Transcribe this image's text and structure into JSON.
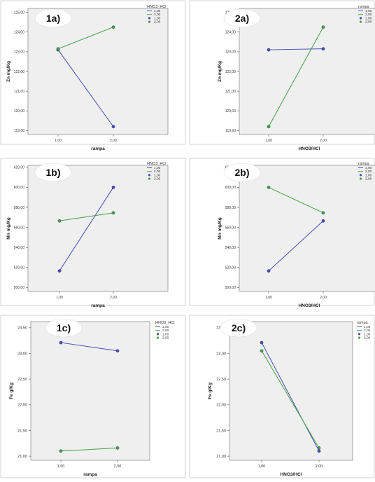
{
  "colors": {
    "blue": "#4a4ab8",
    "green": "#3fa33f",
    "plot_bg": "#efefef",
    "frame": "#909090"
  },
  "chart_data": [
    {
      "type": "line",
      "tag": "1a)",
      "xlabel": "rampa",
      "ylabel": "Zn mg/Kg",
      "x": [
        "1,00",
        "2,00"
      ],
      "ylim": [
        118.8,
        125.2
      ],
      "yticks": [
        119,
        120,
        121,
        122,
        123,
        124,
        125
      ],
      "ytick_labels": [
        "119,00",
        "120,00",
        "121,00",
        "122,00",
        "123,00",
        "124,00",
        "125,00"
      ],
      "legend_title": "HNO3_HCl",
      "legend_labels": [
        "1,00",
        "2,00",
        "1,00",
        "2,00"
      ],
      "series": [
        {
          "name": "1,00",
          "color": "blue",
          "values": [
            123.1,
            119.2
          ]
        },
        {
          "name": "2,00",
          "color": "green",
          "values": [
            123.15,
            124.25
          ]
        }
      ]
    },
    {
      "type": "line",
      "tag": "2a)",
      "xlabel": "HNO3/HCl",
      "ylabel": "Zn mg/Kg",
      "x": [
        "1,00",
        "2,00"
      ],
      "ylim": [
        118.8,
        125.2
      ],
      "yticks": [
        119,
        120,
        121,
        122,
        123,
        124,
        125
      ],
      "ytick_labels": [
        "119,00",
        "120,00",
        "121,00",
        "122,00",
        "123,00",
        "124,00",
        "125,00"
      ],
      "legend_title": "rampa",
      "legend_labels": [
        "1,00",
        "2,00",
        "1,00",
        "2,00"
      ],
      "series": [
        {
          "name": "1,00",
          "color": "blue",
          "values": [
            123.1,
            123.15
          ]
        },
        {
          "name": "2,00",
          "color": "green",
          "values": [
            119.2,
            124.25
          ]
        }
      ]
    },
    {
      "type": "line",
      "tag": "1b)",
      "xlabel": "rampa",
      "ylabel": "Mn mg/Kg",
      "x": [
        "1,00",
        "2,00"
      ],
      "ylim": [
        496,
        622
      ],
      "yticks": [
        500,
        520,
        540,
        560,
        580,
        600,
        620
      ],
      "ytick_labels": [
        "500,00",
        "520,00",
        "540,00",
        "560,00",
        "580,00",
        "600,00",
        "620,00"
      ],
      "legend_title": "HNO3_HCl",
      "legend_labels": [
        "1,00",
        "2,00",
        "1,00",
        "2,00"
      ],
      "series": [
        {
          "name": "1,00",
          "color": "blue",
          "values": [
            516.5,
            600
          ]
        },
        {
          "name": "2,00",
          "color": "green",
          "values": [
            566.5,
            574.5
          ]
        }
      ]
    },
    {
      "type": "line",
      "tag": "2b)",
      "xlabel": "HNO3/HCl",
      "ylabel": "Mn mg/Kg",
      "x": [
        "1,00",
        "2,00"
      ],
      "ylim": [
        496,
        622
      ],
      "yticks": [
        500,
        520,
        540,
        560,
        580,
        600,
        620
      ],
      "ytick_labels": [
        "500,00",
        "520,00",
        "540,00",
        "560,00",
        "580,00",
        "600,00",
        "620,00"
      ],
      "legend_title": "rampa",
      "legend_labels": [
        "1,00",
        "2,00",
        "1,00",
        "2,00"
      ],
      "series": [
        {
          "name": "1,00",
          "color": "blue",
          "values": [
            516.5,
            566.5
          ]
        },
        {
          "name": "2,00",
          "color": "green",
          "values": [
            600,
            574.5
          ]
        }
      ]
    },
    {
      "type": "line",
      "tag": "1c)",
      "xlabel": "rampa",
      "ylabel": "Fe g/Kg",
      "x": [
        "1,00",
        "2,00"
      ],
      "ylim": [
        20.92,
        23.62
      ],
      "yticks": [
        21.0,
        21.5,
        22.0,
        22.5,
        23.0,
        23.5
      ],
      "ytick_labels": [
        "21,00",
        "21,50",
        "22,00",
        "22,50",
        "23,00",
        "23,50"
      ],
      "legend_title": "HNO3_HCl",
      "legend_labels": [
        "1,00",
        "2,00",
        "1,00",
        "2,00"
      ],
      "series": [
        {
          "name": "1,00",
          "color": "blue",
          "values": [
            23.21,
            23.05
          ]
        },
        {
          "name": "2,00",
          "color": "green",
          "values": [
            21.1,
            21.16
          ]
        }
      ]
    },
    {
      "type": "line",
      "tag": "2c)",
      "xlabel": "HNO3/HCl",
      "ylabel": "Fe g/Kg",
      "x": [
        "1,00",
        "2,00"
      ],
      "ylim": [
        20.92,
        23.62
      ],
      "yticks": [
        21.0,
        21.5,
        22.0,
        22.5,
        23.0,
        23.5
      ],
      "ytick_labels": [
        "21,00",
        "21,50",
        "22,00",
        "22,50",
        "23,00",
        "23,50"
      ],
      "legend_title": "rampa",
      "legend_labels": [
        "1,00",
        "2,00",
        "1,00",
        "2,00"
      ],
      "series": [
        {
          "name": "1,00",
          "color": "blue",
          "values": [
            23.21,
            21.1
          ]
        },
        {
          "name": "2,00",
          "color": "green",
          "values": [
            23.05,
            21.16
          ]
        }
      ]
    }
  ]
}
